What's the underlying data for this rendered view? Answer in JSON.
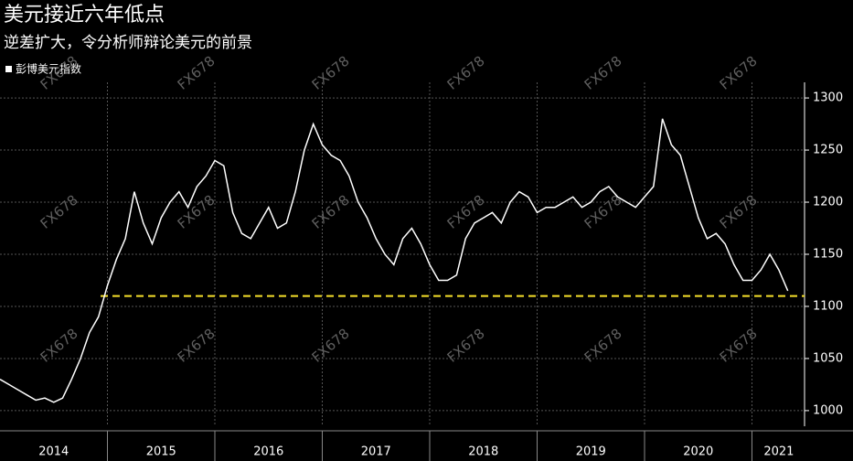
{
  "chart_data": {
    "type": "line",
    "title": "美元接近六年低点",
    "subtitle": "逆差扩大，令分析师辩论美元的前景",
    "watermark": "FX678",
    "categories": [
      null,
      null,
      null,
      null,
      null,
      null,
      "2014",
      null,
      null,
      null,
      null,
      null,
      null,
      null,
      null,
      null,
      null,
      null,
      "2015",
      null,
      null,
      null,
      null,
      null,
      null,
      null,
      null,
      null,
      null,
      null,
      "2016",
      null,
      null,
      null,
      null,
      null,
      null,
      null,
      null,
      null,
      null,
      null,
      "2017",
      null,
      null,
      null,
      null,
      null,
      null,
      null,
      null,
      null,
      null,
      null,
      "2018",
      null,
      null,
      null,
      null,
      null,
      null,
      null,
      null,
      null,
      null,
      null,
      "2019",
      null,
      null,
      null,
      null,
      null,
      null,
      null,
      null,
      null,
      null,
      null,
      "2020",
      null,
      null,
      null,
      null,
      null,
      null,
      null,
      null,
      "2021",
      null
    ],
    "series": [
      {
        "name": "彭博美元指数",
        "color": "#ffffff",
        "values": [
          1030,
          1025,
          1020,
          1015,
          1010,
          1012,
          1008,
          1012,
          1030,
          1050,
          1075,
          1090,
          1120,
          1145,
          1165,
          1210,
          1180,
          1160,
          1185,
          1200,
          1210,
          1195,
          1215,
          1225,
          1240,
          1235,
          1190,
          1170,
          1165,
          1180,
          1195,
          1175,
          1180,
          1210,
          1250,
          1275,
          1255,
          1245,
          1240,
          1225,
          1200,
          1185,
          1165,
          1150,
          1140,
          1165,
          1175,
          1160,
          1140,
          1125,
          1125,
          1130,
          1165,
          1180,
          1185,
          1190,
          1180,
          1200,
          1210,
          1205,
          1190,
          1195,
          1195,
          1200,
          1205,
          1195,
          1200,
          1210,
          1215,
          1205,
          1200,
          1195,
          1205,
          1215,
          1280,
          1255,
          1245,
          1215,
          1185,
          1165,
          1170,
          1160,
          1140,
          1125,
          1125,
          1135,
          1150,
          1135,
          1115
        ]
      }
    ],
    "reference_line": {
      "value": 1110,
      "color": "#f5e02a"
    },
    "ylim": [
      985,
      1315
    ],
    "yticks": [
      1000,
      1050,
      1100,
      1150,
      1200,
      1250,
      1300
    ],
    "grid": true
  }
}
